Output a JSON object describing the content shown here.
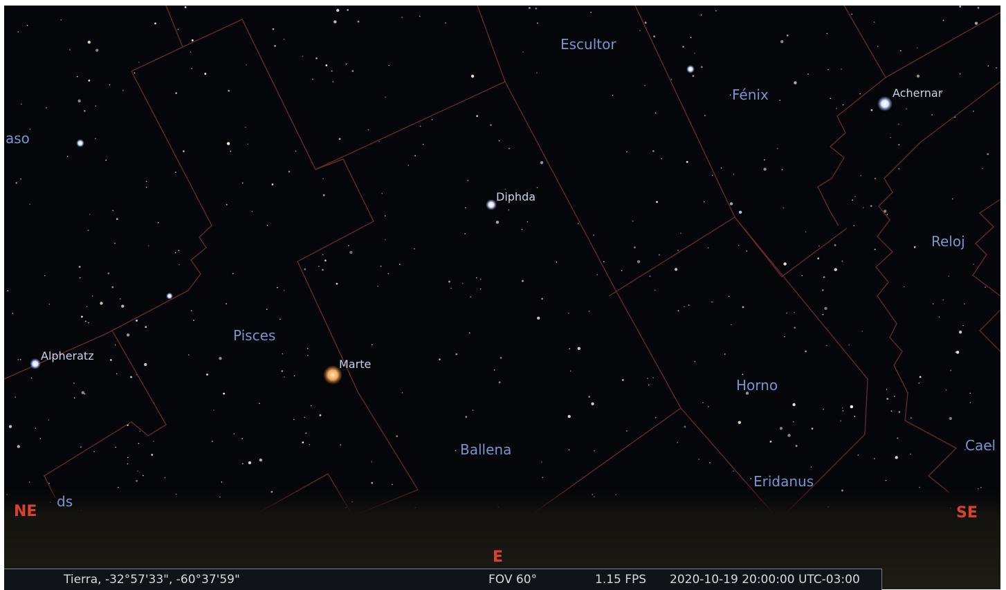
{
  "sky": {
    "constellations": [
      "Escultor",
      "Fénix",
      "aso",
      "Reloj",
      "Pisces",
      "Horno",
      "Ballena",
      "Cael",
      "Eridanus",
      "ds"
    ],
    "stars": [
      "Achernar",
      "Diphda",
      "Alpheratz"
    ],
    "planets": [
      "Marte"
    ],
    "cardinals": [
      "NE",
      "SE",
      "E"
    ]
  },
  "status_bar": {
    "location": "Tierra, -32°57'33\", -60°37'59\"",
    "fov": "FOV 60°",
    "fps": "1.15 FPS",
    "datetime": "2020-10-19 20:00:00 UTC-03:00"
  }
}
